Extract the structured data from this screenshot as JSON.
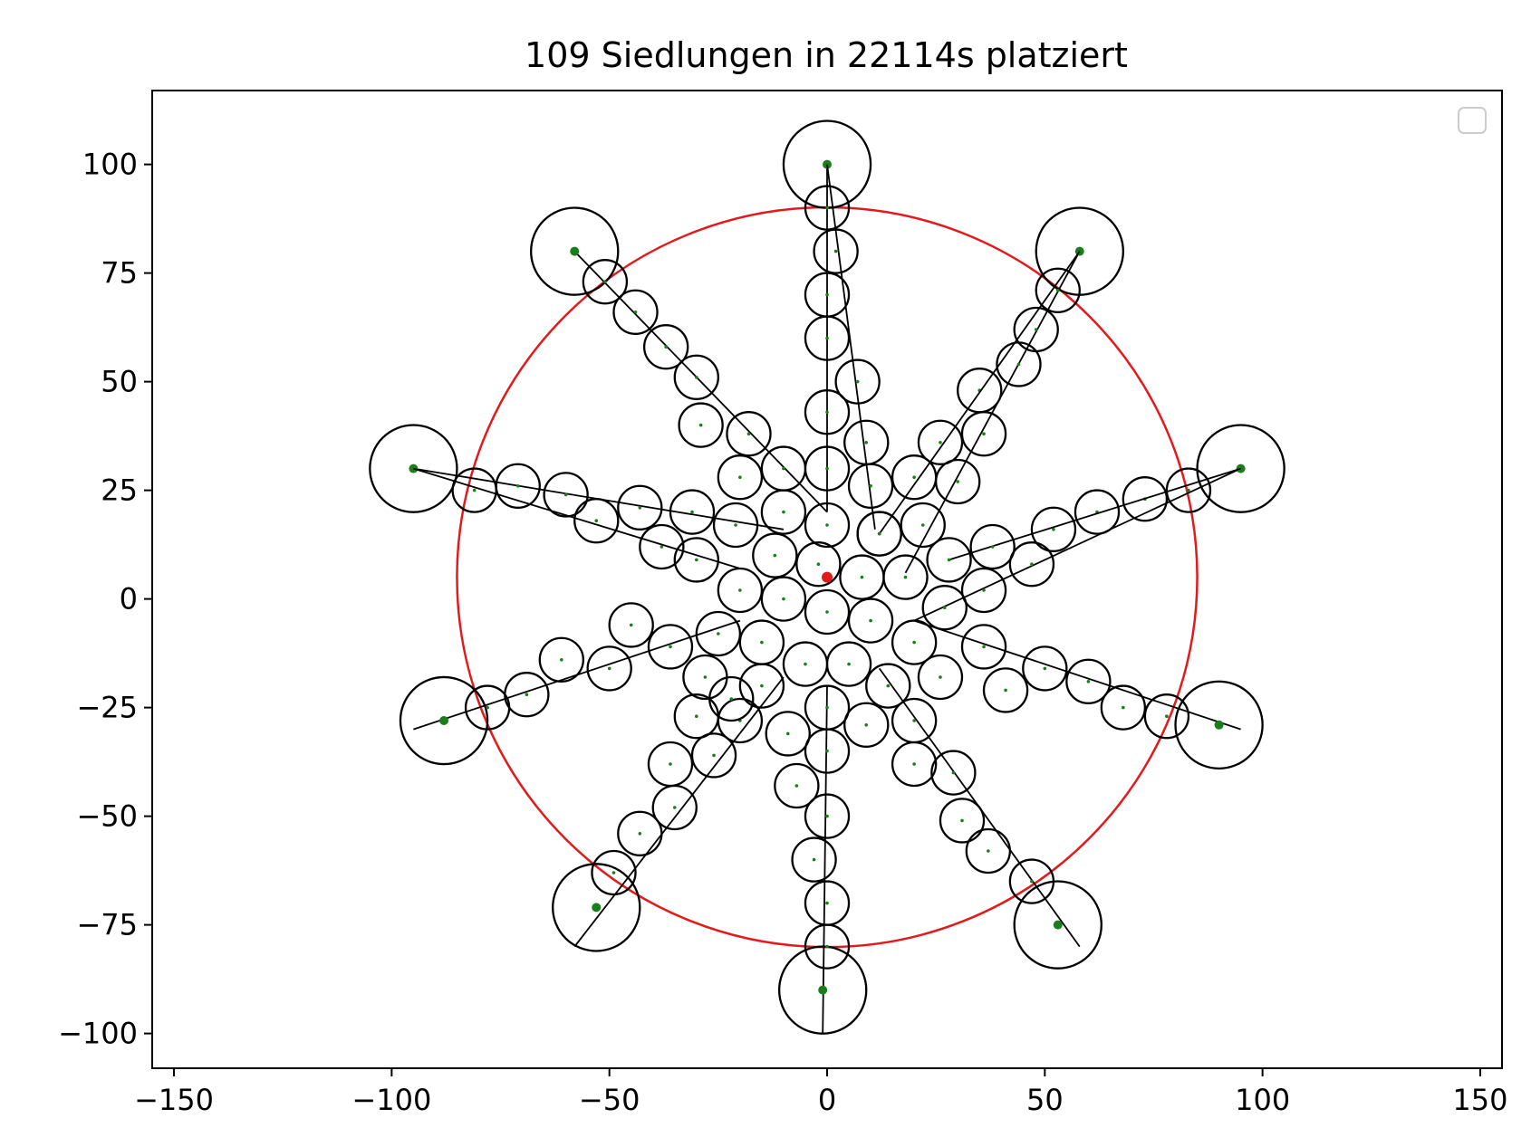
{
  "chart_data": {
    "type": "scatter",
    "title": "109 Siedlungen in 22114s platziert",
    "xlabel": "",
    "ylabel": "",
    "xlim": [
      -155,
      155
    ],
    "ylim": [
      -108,
      117
    ],
    "x_ticks": [
      -150,
      -100,
      -50,
      0,
      50,
      100,
      150
    ],
    "x_tick_labels": [
      "−150",
      "−100",
      "−50",
      "0",
      "50",
      "100",
      "150"
    ],
    "y_ticks": [
      100,
      75,
      50,
      25,
      0,
      -25,
      -50,
      -75,
      -100
    ],
    "y_tick_labels": [
      "100",
      "75",
      "50",
      "25",
      "0",
      "−25",
      "−50",
      "−75",
      "−100"
    ],
    "grid": false,
    "legend": {
      "placement": "upper right",
      "entries": []
    },
    "colors": {
      "boundary": "#e31a1c",
      "settlement": "#000000",
      "center_point": "#1a7f1a",
      "origin": "#e31a1c"
    },
    "boundary_circle": {
      "center": [
        0,
        5
      ],
      "radius": 85
    },
    "origin_point": [
      0,
      5
    ],
    "settlement_radius": 5,
    "arms": [
      {
        "tip": [
          0,
          100
        ],
        "tip_radius": 10,
        "line_from": [
          0,
          100
        ],
        "line_to": [
          0,
          20
        ],
        "settlements": [
          [
            0,
            90
          ],
          [
            2,
            80
          ],
          [
            0,
            70
          ],
          [
            0,
            60
          ],
          [
            0,
            43
          ],
          [
            0,
            30
          ],
          [
            0,
            17
          ]
        ]
      },
      {
        "tip": [
          0,
          100
        ],
        "tip_radius": 0,
        "line_from": [
          0,
          100
        ],
        "line_to": [
          11,
          16
        ],
        "settlements": [
          [
            7,
            50
          ],
          [
            9,
            36
          ],
          [
            10,
            26
          ],
          [
            12,
            15
          ]
        ]
      },
      {
        "tip": [
          58,
          80
        ],
        "tip_radius": 10,
        "line_from": [
          58,
          80
        ],
        "line_to": [
          18,
          6
        ],
        "settlements": [
          [
            53,
            71
          ],
          [
            48,
            62
          ],
          [
            44,
            54
          ],
          [
            35,
            48
          ],
          [
            36,
            38
          ],
          [
            30,
            27
          ],
          [
            22,
            17
          ],
          [
            18,
            5
          ]
        ]
      },
      {
        "tip": [
          58,
          80
        ],
        "tip_radius": 0,
        "line_from": [
          58,
          80
        ],
        "line_to": [
          12,
          15
        ],
        "settlements": [
          [
            26,
            36
          ],
          [
            20,
            28
          ],
          [
            12,
            15
          ]
        ]
      },
      {
        "tip": [
          95,
          30
        ],
        "tip_radius": 10,
        "line_from": [
          95,
          30
        ],
        "line_to": [
          20,
          -5
        ],
        "settlements": [
          [
            83,
            25
          ],
          [
            73,
            23
          ],
          [
            62,
            20
          ],
          [
            52,
            16
          ],
          [
            47,
            8
          ],
          [
            36,
            2
          ],
          [
            27,
            -2
          ],
          [
            20,
            -10
          ]
        ]
      },
      {
        "tip": [
          95,
          30
        ],
        "tip_radius": 0,
        "line_from": [
          95,
          30
        ],
        "line_to": [
          28,
          9
        ],
        "settlements": [
          [
            38,
            12
          ],
          [
            28,
            9
          ]
        ]
      },
      {
        "tip": [
          90,
          -29
        ],
        "tip_radius": 10,
        "line_from": [
          95,
          -30
        ],
        "line_to": [
          20,
          -5
        ],
        "settlements": [
          [
            78,
            -27
          ],
          [
            68,
            -25
          ],
          [
            60,
            -19
          ],
          [
            50,
            -16
          ],
          [
            41,
            -21
          ],
          [
            36,
            -11
          ],
          [
            26,
            -18
          ]
        ]
      },
      {
        "tip": [
          53,
          -75
        ],
        "tip_radius": 10,
        "line_from": [
          58,
          -80
        ],
        "line_to": [
          12,
          -16
        ],
        "settlements": [
          [
            47,
            -65
          ],
          [
            37,
            -58
          ],
          [
            31,
            -51
          ],
          [
            29,
            -40
          ],
          [
            20,
            -38
          ],
          [
            20,
            -28
          ],
          [
            14,
            -20
          ]
        ]
      },
      {
        "tip": [
          -1,
          -90
        ],
        "tip_radius": 10,
        "line_from": [
          -1,
          -100
        ],
        "line_to": [
          0,
          -20
        ],
        "settlements": [
          [
            0,
            -80
          ],
          [
            0,
            -70
          ],
          [
            -3,
            -60
          ],
          [
            0,
            -50
          ],
          [
            -7,
            -43
          ],
          [
            -9,
            -31
          ],
          [
            0,
            -35
          ],
          [
            0,
            -25
          ],
          [
            9,
            -29
          ]
        ]
      },
      {
        "tip": [
          -53,
          -71
        ],
        "tip_radius": 10,
        "line_from": [
          -58,
          -80
        ],
        "line_to": [
          -10,
          -18
        ],
        "settlements": [
          [
            -49,
            -63
          ],
          [
            -43,
            -54
          ],
          [
            -35,
            -48
          ],
          [
            -36,
            -38
          ],
          [
            -26,
            -36
          ],
          [
            -30,
            -27
          ],
          [
            -20,
            -28
          ],
          [
            -15,
            -20
          ]
        ]
      },
      {
        "tip": [
          -88,
          -28
        ],
        "tip_radius": 10,
        "line_from": [
          -95,
          -30
        ],
        "line_to": [
          -20,
          -5
        ],
        "settlements": [
          [
            -78,
            -25
          ],
          [
            -69,
            -22
          ],
          [
            -61,
            -14
          ],
          [
            -50,
            -16
          ],
          [
            -45,
            -6
          ],
          [
            -36,
            -11
          ],
          [
            -25,
            -8
          ],
          [
            -28,
            -18
          ]
        ]
      },
      {
        "tip": [
          -95,
          30
        ],
        "tip_radius": 10,
        "line_from": [
          -95,
          30
        ],
        "line_to": [
          -10,
          16
        ],
        "settlements": [
          [
            -81,
            25
          ],
          [
            -71,
            26
          ],
          [
            -60,
            24
          ],
          [
            -53,
            18
          ],
          [
            -43,
            21
          ],
          [
            -31,
            20
          ],
          [
            -21,
            17
          ]
        ]
      },
      {
        "tip": [
          -95,
          30
        ],
        "tip_radius": 0,
        "line_from": [
          -95,
          30
        ],
        "line_to": [
          -20,
          7
        ],
        "settlements": [
          [
            -38,
            12
          ],
          [
            -30,
            9
          ],
          [
            -20,
            2
          ]
        ]
      },
      {
        "tip": [
          -58,
          80
        ],
        "tip_radius": 10,
        "line_from": [
          -58,
          80
        ],
        "line_to": [
          0,
          20
        ],
        "settlements": [
          [
            -51,
            73
          ],
          [
            -44,
            66
          ],
          [
            -37,
            58
          ],
          [
            -30,
            51
          ],
          [
            -29,
            40
          ],
          [
            -18,
            38
          ],
          [
            -20,
            28
          ],
          [
            -10,
            30
          ],
          [
            -10,
            20
          ]
        ]
      },
      {
        "tip": [
          0,
          0
        ],
        "tip_radius": 0,
        "line_from": [
          0,
          0
        ],
        "line_to": [
          0,
          0
        ],
        "settlements": [
          [
            -12,
            10
          ],
          [
            -2,
            8
          ],
          [
            8,
            5
          ],
          [
            -10,
            0
          ],
          [
            0,
            -3
          ],
          [
            10,
            -5
          ],
          [
            -5,
            -15
          ],
          [
            5,
            -15
          ],
          [
            -15,
            -10
          ],
          [
            -22,
            -23
          ]
        ]
      }
    ]
  }
}
